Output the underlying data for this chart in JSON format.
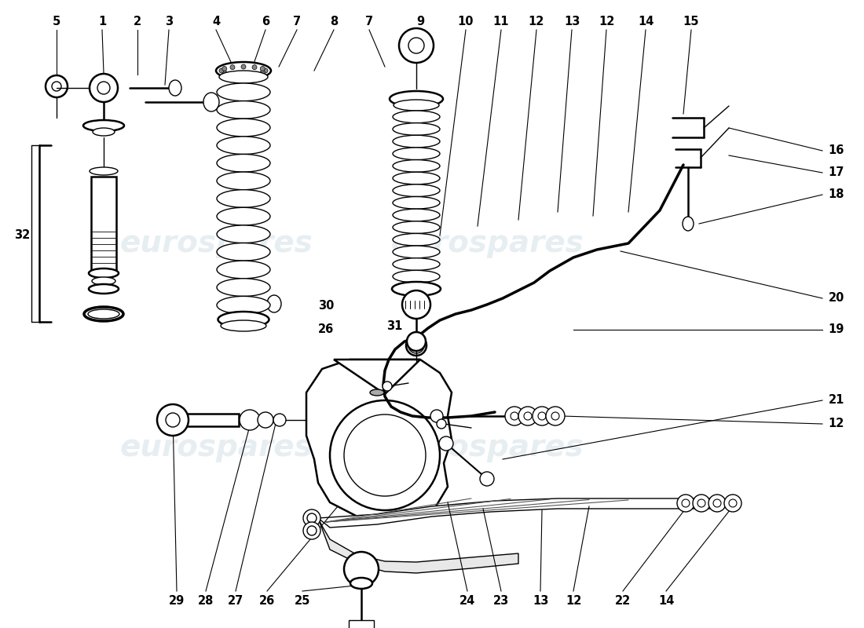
{
  "bg": "#ffffff",
  "line_color": "#000000",
  "watermark": "eurospares",
  "wm_color": "#c5d5e0",
  "wm_alpha": 0.4
}
